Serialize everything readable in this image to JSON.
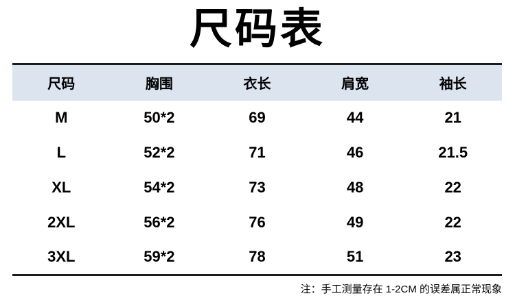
{
  "title": "尺码表",
  "chart_data": {
    "type": "table",
    "title": "尺码表",
    "columns": [
      "尺码",
      "胸围",
      "衣长",
      "肩宽",
      "袖长"
    ],
    "rows": [
      [
        "M",
        "50*2",
        "69",
        "44",
        "21"
      ],
      [
        "L",
        "52*2",
        "71",
        "46",
        "21.5"
      ],
      [
        "XL",
        "54*2",
        "73",
        "48",
        "22"
      ],
      [
        "2XL",
        "56*2",
        "76",
        "49",
        "22"
      ],
      [
        "3XL",
        "59*2",
        "78",
        "51",
        "23"
      ]
    ]
  },
  "footnote": "注：手工测量存在 1-2CM 的误差属正常现象",
  "colors": {
    "header_background": "#dce4f0",
    "border": "#1b1b1b",
    "text": "#000000",
    "page_background": "#ffffff"
  }
}
